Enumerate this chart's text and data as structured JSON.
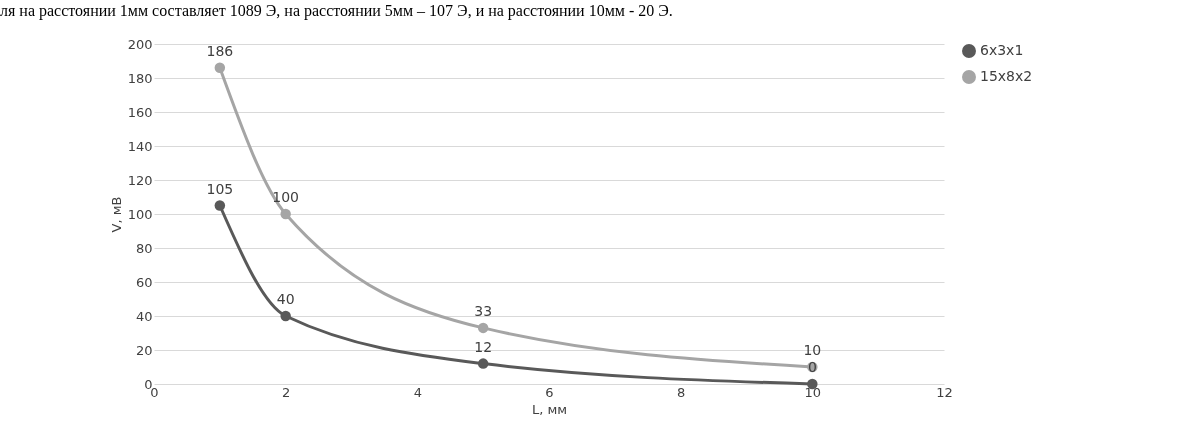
{
  "chart_data": {
    "type": "line",
    "xlabel": "L, мм",
    "ylabel": "V, мВ",
    "xlim": [
      0,
      12
    ],
    "xticks": [
      0,
      2,
      4,
      6,
      8,
      10,
      12
    ],
    "ylim": [
      0,
      200
    ],
    "yticks": [
      0,
      20,
      40,
      60,
      80,
      100,
      120,
      140,
      160,
      180,
      200
    ],
    "grid": "y",
    "legend": "right",
    "marker": "circle",
    "data_labels": true,
    "annotations": [
      "ля на расстоянии 1мм составляет 1089 Э, на расстоянии 5мм – 107 Э, и на расстоянии 10мм - 20 Э."
    ],
    "series": [
      {
        "name": "6x3x1",
        "color": "#595959",
        "x": [
          1,
          2,
          5,
          10
        ],
        "values": [
          105,
          40,
          12,
          0
        ]
      },
      {
        "name": "15x8x2",
        "color": "#a5a5a5",
        "x": [
          1,
          2,
          5,
          10
        ],
        "values": [
          186,
          100,
          33,
          10
        ]
      }
    ]
  }
}
